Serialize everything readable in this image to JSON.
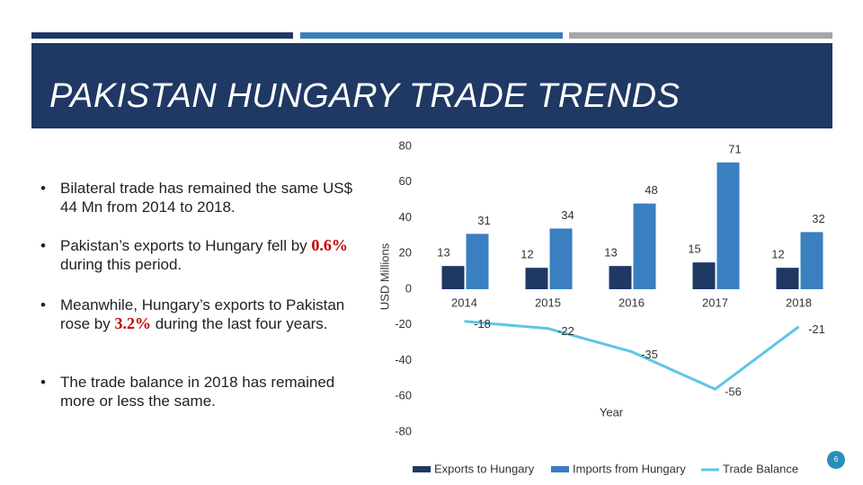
{
  "header": {
    "title": "PAKISTAN HUNGARY TRADE TRENDS"
  },
  "bullets": [
    {
      "before": "Bilateral trade has remained the same US$ 44 Mn from 2014 to 2018."
    },
    {
      "before": "Pakistan’s exports to Hungary fell by ",
      "highlight": "0.6%",
      "after": " during this period."
    },
    {
      "before": "Meanwhile, Hungary’s exports to Pakistan rose by ",
      "highlight": "3.2%",
      "after": " during the last four years."
    },
    {
      "before": "The trade balance in 2018 has remained more or less the same."
    }
  ],
  "page_number": "6",
  "chart_data": {
    "type": "bar-line",
    "x_label": "Year",
    "y_label": "USD Millions",
    "categories": [
      "2014",
      "2015",
      "2016",
      "2017",
      "2018"
    ],
    "series": [
      {
        "name": "Exports to Hungary",
        "type": "bar",
        "color": "#1f3864",
        "values": [
          13,
          12,
          13,
          15,
          12
        ]
      },
      {
        "name": "Imports from Hungary",
        "type": "bar",
        "color": "#3a7fc0",
        "values": [
          31,
          34,
          48,
          71,
          32
        ]
      },
      {
        "name": "Trade Balance",
        "type": "line",
        "color": "#5cc6e6",
        "values": [
          -18,
          -22,
          -35,
          -56,
          -21
        ]
      }
    ],
    "ylim": [
      -80,
      80
    ],
    "yticks": [
      -80,
      -60,
      -40,
      -20,
      0,
      20,
      40,
      60,
      80
    ],
    "grid": false,
    "legend": "bottom"
  }
}
